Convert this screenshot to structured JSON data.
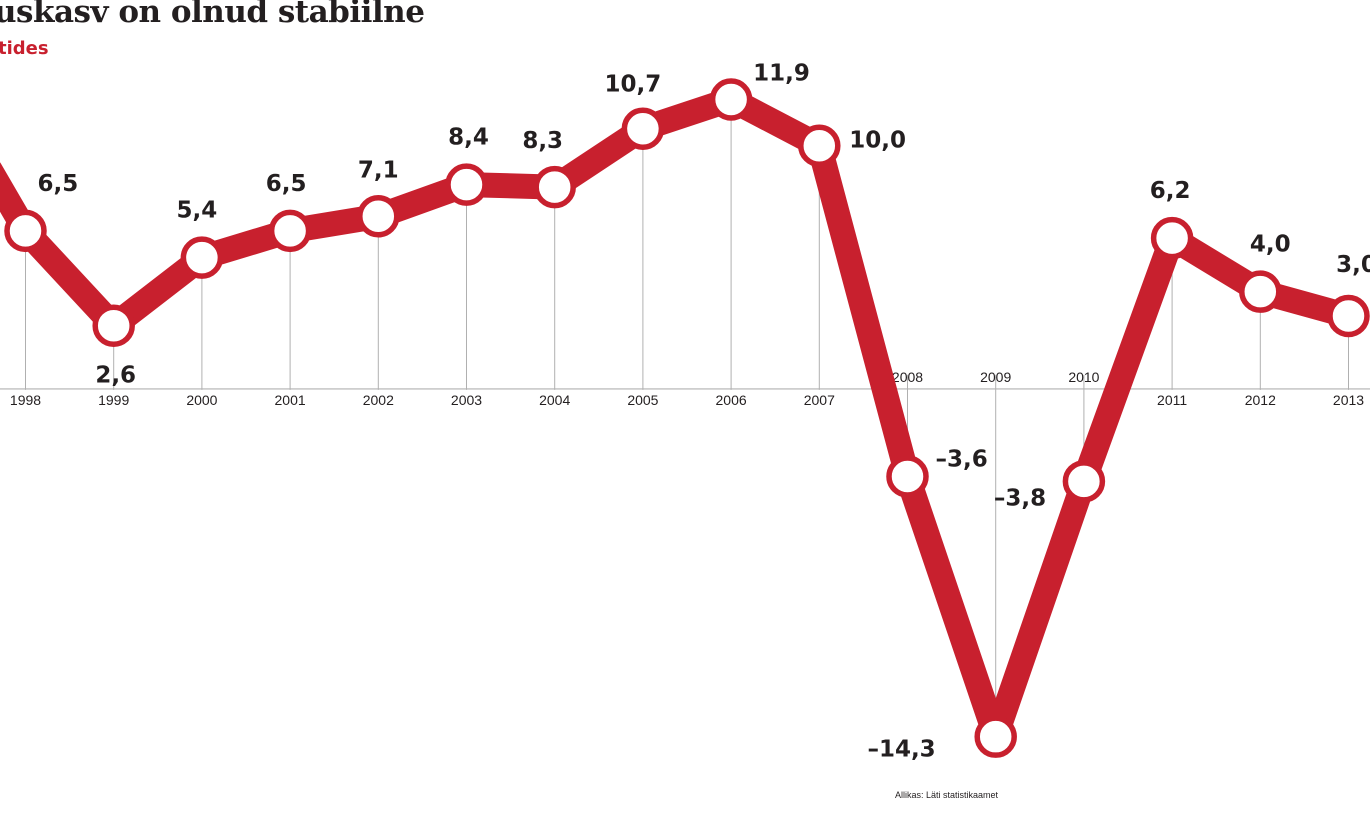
{
  "title": "uskasv on olnud stabiilne",
  "subtitle": "tides",
  "source": "Allikas: Läti statistikaamet",
  "colors": {
    "line": "#c8202e",
    "text": "#231f20",
    "grid": "#b0b0b0",
    "marker_fill": "#ffffff"
  },
  "chart_data": {
    "type": "line",
    "title": "uskasv on olnud stabiilne",
    "subtitle": "tides",
    "xlabel": "",
    "ylabel": "",
    "grid": "vertical drop lines",
    "legend": "none",
    "categories": [
      "1998",
      "1999",
      "2000",
      "2001",
      "2002",
      "2003",
      "2004",
      "2005",
      "2006",
      "2007",
      "2008",
      "2009",
      "2010",
      "2011",
      "2012",
      "2013"
    ],
    "x_positions": [
      1998,
      1999,
      2000,
      2001,
      2002,
      2003,
      2004,
      2005,
      2006,
      2007,
      2008,
      2009,
      2010,
      2011,
      2012,
      2013
    ],
    "x_range": [
      1997.75,
      2013.2
    ],
    "series": [
      {
        "values": [
          6.5,
          2.6,
          5.4,
          6.5,
          7.1,
          8.4,
          8.3,
          10.7,
          11.9,
          10.0,
          -3.6,
          -14.3,
          -3.8,
          6.2,
          4.0,
          3.0
        ],
        "labels": [
          "6,5",
          "2,6",
          "5,4",
          "6,5",
          "7,1",
          "8,4",
          "8,3",
          "10,7",
          "11,9",
          "10,0",
          "–3,6",
          "–14,3",
          "–3,8",
          "6,2",
          "4,0",
          "3,0"
        ],
        "leading_point": {
          "x": 1997.6,
          "y": 9.0
        }
      }
    ],
    "ylim": [
      -15.3,
      14.8
    ]
  }
}
